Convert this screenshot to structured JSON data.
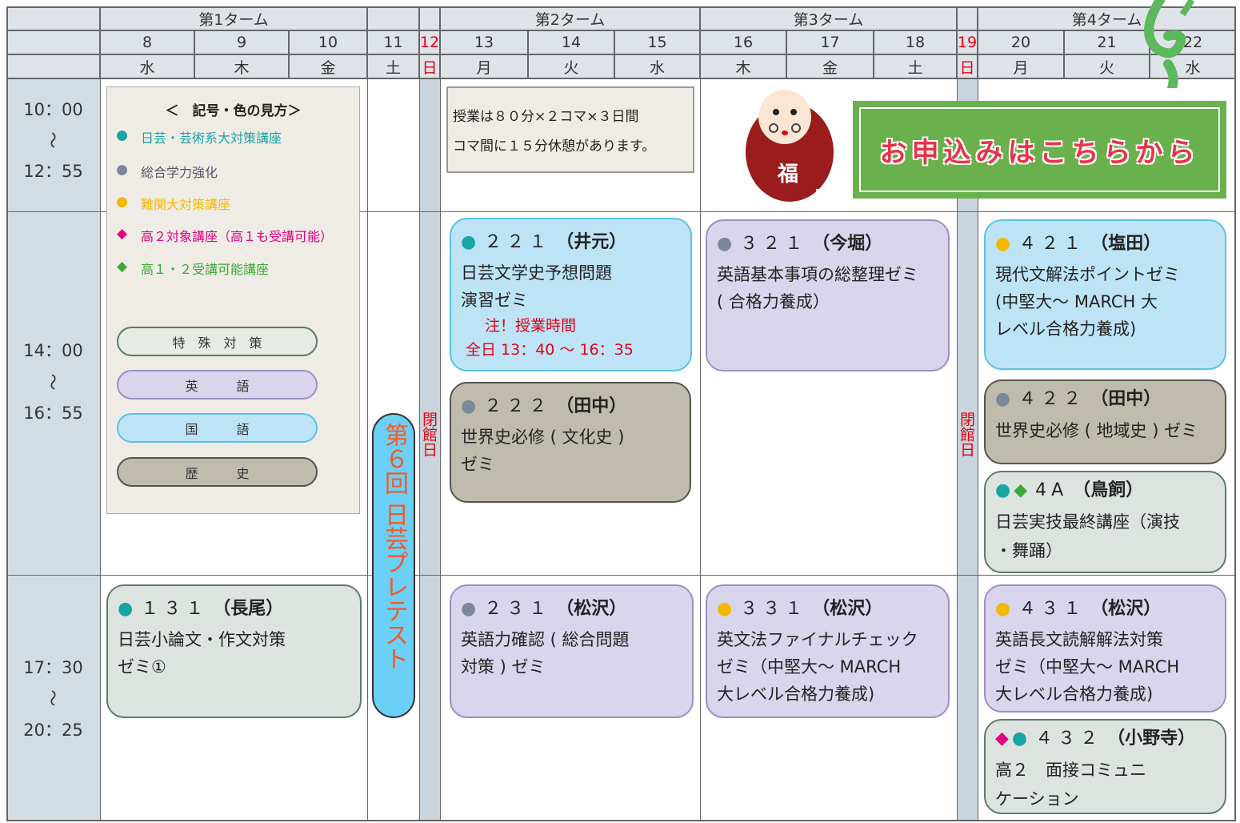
{
  "header": {
    "terms": [
      "第1ターム",
      "第2ターム",
      "第3ターム",
      "第4ターム"
    ],
    "days": [
      {
        "date": "8",
        "weekday": "水"
      },
      {
        "date": "9",
        "weekday": "木"
      },
      {
        "date": "10",
        "weekday": "金"
      },
      {
        "date": "11",
        "weekday": "土"
      },
      {
        "date": "12",
        "weekday": "日",
        "color": "#e60012"
      },
      {
        "date": "13",
        "weekday": "月"
      },
      {
        "date": "14",
        "weekday": "火"
      },
      {
        "date": "15",
        "weekday": "水"
      },
      {
        "date": "16",
        "weekday": "木"
      },
      {
        "date": "17",
        "weekday": "金"
      },
      {
        "date": "18",
        "weekday": "土"
      },
      {
        "date": "19",
        "weekday": "日",
        "color": "#e60012"
      },
      {
        "date": "20",
        "weekday": "月"
      },
      {
        "date": "21",
        "weekday": "火"
      },
      {
        "date": "22",
        "weekday": "水"
      }
    ]
  },
  "periods": [
    {
      "start": "10：00",
      "sep": "～",
      "end": "12：55"
    },
    {
      "start": "14：00",
      "sep": "～",
      "end": "16：55"
    },
    {
      "start": "17：30",
      "sep": "～",
      "end": "20：25"
    }
  ],
  "closed_label": "閉館日",
  "legend": {
    "title": "＜　記号・色の見方＞",
    "items": [
      {
        "symbol": "●",
        "color": "#1aa3a3",
        "text": "日芸・芸術系大対策講座"
      },
      {
        "symbol": "●",
        "color": "#7b8899",
        "text": "総合学力強化"
      },
      {
        "symbol": "●",
        "color": "#f5b800",
        "text": "難関大対策講座"
      },
      {
        "symbol": "◆",
        "color": "#e4007f",
        "text": "高２対象講座（高１も受講可能）"
      },
      {
        "symbol": "◆",
        "color": "#3aaa35",
        "text": "高１・２受講可能講座"
      }
    ],
    "categories": [
      {
        "text": "特　殊　対　策",
        "fill": "#e6ebe6",
        "border": "#5d7a6c"
      },
      {
        "text": "英　　　語",
        "fill": "#d8d5ec",
        "border": "#9c8fc4"
      },
      {
        "text": "国　　　語",
        "fill": "#bde4f6",
        "border": "#5bc0e8"
      },
      {
        "text": "歴　　　史",
        "fill": "#bfbcad",
        "border": "#555550"
      }
    ]
  },
  "note": [
    "授業は８０分×２コマ×３日間",
    "コマ間に１５分休憩があります。"
  ],
  "pretest": "第６回 日芸プレテスト",
  "cta": "お申込みはこちらから",
  "mascot": "福",
  "courses": [
    {
      "marks": [
        {
          "char": "●",
          "color": "#1aa3a3"
        }
      ],
      "code": "２２１",
      "teacher": "（井元）",
      "lines": [
        "日芸文学史予想問題",
        "演習ゼミ"
      ],
      "note": [
        "注！授業時間",
        "全日 13：40 ～ 16：35"
      ],
      "fill": "#bde4f6",
      "border": "#5bc0e8"
    },
    {
      "marks": [
        {
          "char": "●",
          "color": "#7b8899"
        }
      ],
      "code": "２２２",
      "teacher": "（田中）",
      "lines": [
        "世界史必修 ( 文化史 )",
        "ゼミ"
      ],
      "fill": "#bfbcad",
      "border": "#555550"
    },
    {
      "marks": [
        {
          "char": "●",
          "color": "#7b8899"
        }
      ],
      "code": "３２１",
      "teacher": "（今堀）",
      "lines": [
        "英語基本事項の総整理ゼミ",
        "( 合格力養成）"
      ],
      "fill": "#d8d5ec",
      "border": "#9c8fc4"
    },
    {
      "marks": [
        {
          "char": "●",
          "color": "#f5b800"
        }
      ],
      "code": "４２１",
      "teacher": "（塩田）",
      "lines": [
        "現代文解法ポイントゼミ",
        "(中堅大～ MARCH 大",
        "レベル合格力養成)"
      ],
      "fill": "#bde4f6",
      "border": "#5bc0e8"
    },
    {
      "marks": [
        {
          "char": "●",
          "color": "#7b8899"
        }
      ],
      "code": "４２２",
      "teacher": "（田中）",
      "lines": [
        "世界史必修 ( 地域史 ) ゼミ"
      ],
      "fill": "#bfbcad",
      "border": "#555550"
    },
    {
      "marks": [
        {
          "char": "●",
          "color": "#1aa3a3"
        },
        {
          "char": "◆",
          "color": "#3aaa35"
        }
      ],
      "code": "4A",
      "teacher": "（鳥飼）",
      "lines": [
        "日芸実技最終講座（演技",
        "・舞踊）"
      ],
      "fill": "#dde3df",
      "border": "#5d7a6c"
    },
    {
      "marks": [
        {
          "char": "●",
          "color": "#1aa3a3"
        }
      ],
      "code": "１３１",
      "teacher": "（長尾）",
      "lines": [
        "日芸小論文・作文対策",
        "ゼミ①"
      ],
      "fill": "#dde3df",
      "border": "#5d7a6c"
    },
    {
      "marks": [
        {
          "char": "●",
          "color": "#7b8899"
        }
      ],
      "code": "２３１",
      "teacher": "（松沢）",
      "lines": [
        "英語力確認 ( 総合問題",
        "対策 ) ゼミ"
      ],
      "fill": "#d8d5ec",
      "border": "#9c8fc4"
    },
    {
      "marks": [
        {
          "char": "●",
          "color": "#f5b800"
        }
      ],
      "code": "３３１",
      "teacher": "（松沢）",
      "lines": [
        "英文法ファイナルチェック",
        "ゼミ（中堅大～ MARCH",
        "大レベル合格力養成)"
      ],
      "fill": "#d8d5ec",
      "border": "#9c8fc4"
    },
    {
      "marks": [
        {
          "char": "●",
          "color": "#f5b800"
        }
      ],
      "code": "４３１",
      "teacher": "（松沢）",
      "lines": [
        "英語長文読解解法対策",
        "ゼミ（中堅大～ MARCH",
        "大レベル合格力養成)"
      ],
      "fill": "#d8d5ec",
      "border": "#9c8fc4"
    },
    {
      "marks": [
        {
          "char": "◆",
          "color": "#e4007f"
        },
        {
          "char": "●",
          "color": "#1aa3a3"
        }
      ],
      "code": "４３２",
      "teacher": "（小野寺）",
      "lines": [
        "高２　面接コミュニ",
        "ケーション"
      ],
      "fill": "#dde3df",
      "border": "#5d7a6c"
    }
  ]
}
